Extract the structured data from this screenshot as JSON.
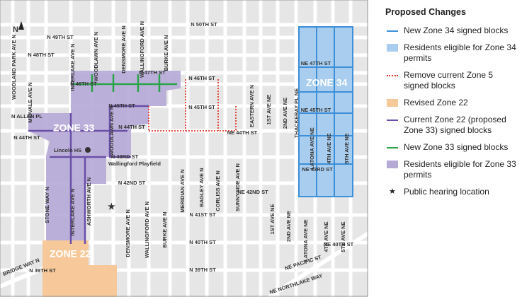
{
  "map": {
    "north": "N",
    "zones": [
      "ZONE 34",
      "ZONE 33",
      "ZONE 22"
    ],
    "places": [
      "Lincoln HS",
      "Wallingford Playfield"
    ],
    "streets": [
      "N 50TH ST",
      "N 49TH ST",
      "N 48TH ST",
      "N 47TH ST",
      "N 46TH ST",
      "N 46TH ST",
      "N 45TH ST",
      "N 45TH ST",
      "NE 45TH ST",
      "N ALLEN PL",
      "N 44TH ST",
      "N 44TH ST",
      "NE 44TH ST",
      "N 43RD ST",
      "NE 43RD ST",
      "N 42ND ST",
      "NE 42ND ST",
      "N 41ST ST",
      "N 40TH ST",
      "NE 40TH ST",
      "N 39TH ST",
      "N 39TH ST",
      "NE PACIFIC ST",
      "NE NORTHLAKE WAY",
      "NE 47TH ST",
      "WOODLAND PARK AVE N",
      "MIDVALE AVE N",
      "INTERLAKE AVE N",
      "WOODLAWN AVE N",
      "DENSMORE AVE N",
      "WALLINGFORD AVE N",
      "BURKE AVE N",
      "WOODLAWN AVE N",
      "INTERLAKE AVE N",
      "STONE WAY N",
      "ASHWORTH AVE N",
      "DENSMORE AVE N",
      "WALLINGFORD AVE N",
      "BURKE AVE N",
      "MERIDIAN AVE N",
      "BAGLEY AVE N",
      "CORLISS AVE N",
      "SUNNYSIDE AVE N",
      "EASTERN AVE N",
      "1ST AVE NE",
      "2ND AVE NE",
      "THACKERAY PL NE",
      "LATONA AVE NE",
      "4TH AVE NE",
      "5TH AVE NE",
      "1ST AVE NE",
      "2ND AVE NE",
      "LATONA AVE NE",
      "4TH AVE NE",
      "5TH AVE NE",
      "BRIDGE WAY N"
    ]
  },
  "legend": {
    "title": "Proposed Changes",
    "items": [
      "New Zone 34 signed blocks",
      "Residents eligible for Zone 34 permits",
      "Remove current Zone 5 signed blocks",
      "Revised Zone 22",
      "Current Zone 22 (proposed Zone 33) signed blocks",
      "New Zone 33 signed blocks",
      "Residents eligible for Zone 33 permits",
      "Public hearing location"
    ]
  }
}
